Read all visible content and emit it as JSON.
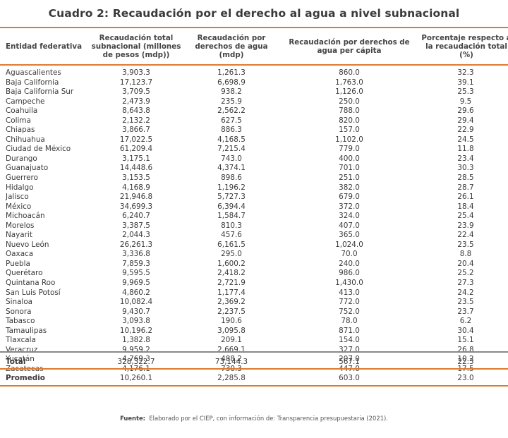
{
  "title": "Cuadro 2: Recaudación por el derecho al agua a nivel subnacional",
  "headers": [
    "Entidad federativa",
    "Recaudación total subnacional (millones de pesos (mdp))",
    "Recaudación por derechos de agua (mdp)",
    "Recaudación por derechos de agua per cápita",
    "Porcentaje respecto a la recaudación total (%)"
  ],
  "rows": [
    [
      "Aguascalientes",
      "3,903.3",
      "1,261.3",
      "860.0",
      "32.3"
    ],
    [
      "Baja California",
      "17,123.7",
      "6,698.9",
      "1,763.0",
      "39.1"
    ],
    [
      "Baja California Sur",
      "3,709.5",
      "938.2",
      "1,126.0",
      "25.3"
    ],
    [
      "Campeche",
      "2,473.9",
      "235.9",
      "250.0",
      "9.5"
    ],
    [
      "Coahuila",
      "8,643.8",
      "2,562.2",
      "788.0",
      "29.6"
    ],
    [
      "Colima",
      "2,132.2",
      "627.5",
      "820.0",
      "29.4"
    ],
    [
      "Chiapas",
      "3,866.7",
      "886.3",
      "157.0",
      "22.9"
    ],
    [
      "Chihuahua",
      "17,022.5",
      "4,168.5",
      "1,102.0",
      "24.5"
    ],
    [
      "Ciudad de México",
      "61,209.4",
      "7,215.4",
      "779.0",
      "11.8"
    ],
    [
      "Durango",
      "3,175.1",
      "743.0",
      "400.0",
      "23.4"
    ],
    [
      "Guanajuato",
      "14,448.6",
      "4,374.1",
      "701.0",
      "30.3"
    ],
    [
      "Guerrero",
      "3,153.5",
      "898.6",
      "251.0",
      "28.5"
    ],
    [
      "Hidalgo",
      "4,168.9",
      "1,196.2",
      "382.0",
      "28.7"
    ],
    [
      "Jalisco",
      "21,946.8",
      "5,727.3",
      "679.0",
      "26.1"
    ],
    [
      "México",
      "34,699.3",
      "6,394.4",
      "372.0",
      "18.4"
    ],
    [
      "Michoacán",
      "6,240.7",
      "1,584.7",
      "324.0",
      "25.4"
    ],
    [
      "Morelos",
      "3,387.5",
      "810.3",
      "407.0",
      "23.9"
    ],
    [
      "Nayarit",
      "2,044.3",
      "457.6",
      "365.0",
      "22.4"
    ],
    [
      "Nuevo León",
      "26,261.3",
      "6,161.5",
      "1,024.0",
      "23.5"
    ],
    [
      "Oaxaca",
      "3,336.8",
      "295.0",
      "70.0",
      "8.8"
    ],
    [
      "Puebla",
      "7,859.3",
      "1,600.2",
      "240.0",
      "20.4"
    ],
    [
      "Querétaro",
      "9,595.5",
      "2,418.2",
      "986.0",
      "25.2"
    ],
    [
      "Quintana Roo",
      "9,969.5",
      "2,721.9",
      "1,430.0",
      "27.3"
    ],
    [
      "San Luis Potosí",
      "4,860.2",
      "1,177.4",
      "413.0",
      "24.2"
    ],
    [
      "Sinaloa",
      "10,082.4",
      "2,369.2",
      "772.0",
      "23.5"
    ],
    [
      "Sonora",
      "9,430.7",
      "2,237.5",
      "752.0",
      "23.7"
    ],
    [
      "Tabasco",
      "3,093.8",
      "190.6",
      "78.0",
      "6.2"
    ],
    [
      "Tamaulipas",
      "10,196.2",
      "3,095.8",
      "871.0",
      "30.4"
    ],
    [
      "Tlaxcala",
      "1,382.8",
      "209.1",
      "154.0",
      "15.1"
    ],
    [
      "Veracruz",
      "9,959.2",
      "2,669.1",
      "327.0",
      "26.8"
    ],
    [
      "Yucatán",
      "4,769.3",
      "488.2",
      "207.0",
      "10.2"
    ],
    [
      "Zacatecas",
      "4,176.1",
      "730.3",
      "447.0",
      "17.5"
    ]
  ],
  "total": [
    "Total",
    "328,322.7",
    "73,144.3",
    "567.1",
    "22.3"
  ],
  "average": [
    "Promedio",
    "10,260.1",
    "2,285.8",
    "603.0",
    "23.0"
  ],
  "source": {
    "label": "Fuente:",
    "text": "Elaborado por el CIEP, con información de: Transparencia presupuestaria (2021)."
  }
}
